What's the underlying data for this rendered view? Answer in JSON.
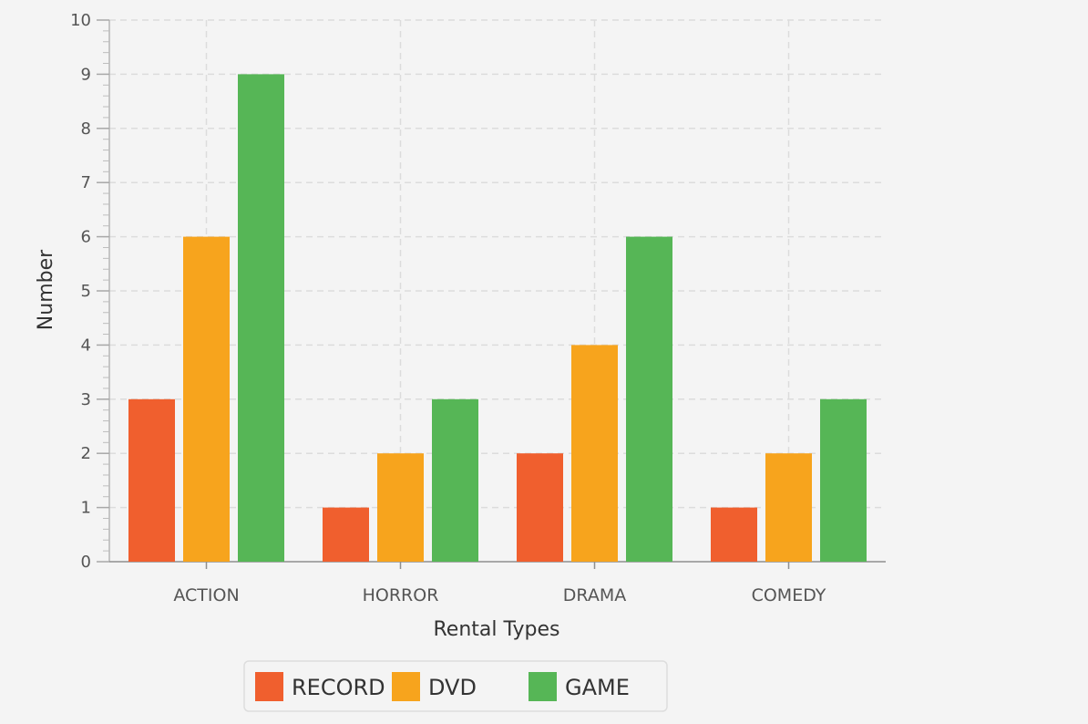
{
  "chart_data": {
    "type": "bar",
    "categories": [
      "ACTION",
      "HORROR",
      "DRAMA",
      "COMEDY"
    ],
    "series": [
      {
        "name": "RECORD",
        "values": [
          3,
          1,
          2,
          1
        ],
        "color": "#f05f2e"
      },
      {
        "name": "DVD",
        "values": [
          6,
          2,
          4,
          2
        ],
        "color": "#f7a41d"
      },
      {
        "name": "GAME",
        "values": [
          9,
          3,
          6,
          3
        ],
        "color": "#56b656"
      }
    ],
    "xlabel": "Rental Types",
    "ylabel": "Number",
    "ylim": [
      0,
      10
    ],
    "yticks": [
      "0",
      "1",
      "2",
      "3",
      "4",
      "5",
      "6",
      "7",
      "8",
      "9",
      "10"
    ],
    "grid": true,
    "legend_position": "bottom"
  }
}
